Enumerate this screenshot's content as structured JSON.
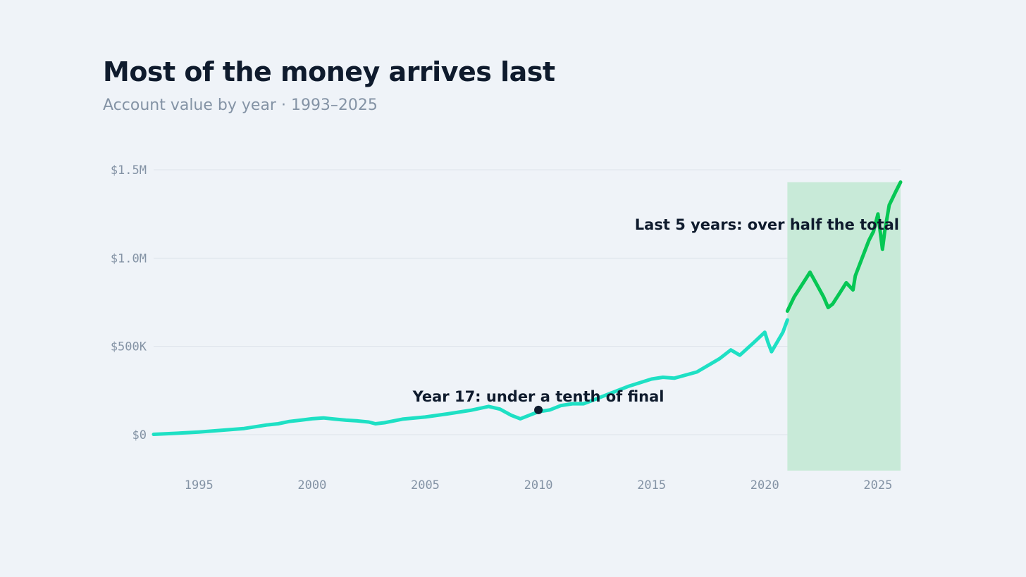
{
  "title": "Most of the money arrives last",
  "subtitle": "Account value by year · 1993–2025",
  "colors": {
    "background": "#eff3f8",
    "line_early": "#1ee0c4",
    "line_recent": "#06c754",
    "shade": "#c8ead8",
    "gridline": "#dde3ea",
    "text": "#0f1b2d",
    "muted": "#8493a5"
  },
  "chart_data": {
    "type": "line",
    "title": "Most of the money arrives last",
    "subtitle": "Account value by year · 1993–2025",
    "xlabel": "",
    "ylabel": "",
    "xlim": [
      1993,
      2026
    ],
    "ylim": [
      -200000,
      1500000
    ],
    "x_ticks": [
      1995,
      2000,
      2005,
      2010,
      2015,
      2020,
      2025
    ],
    "x_tick_labels": [
      "1995",
      "2000",
      "2005",
      "2010",
      "2015",
      "2020",
      "2025"
    ],
    "y_ticks": [
      0,
      500000,
      1000000,
      1500000
    ],
    "y_tick_labels": [
      "$0",
      "$500K",
      "$1.0M",
      "$1.5M"
    ],
    "grid": "horizontal",
    "legend": "none",
    "series": [
      {
        "x": [
          1993.0,
          1994.0,
          1995.0,
          1996.0,
          1997.0,
          1997.5,
          1998.0,
          1998.5,
          1999.0,
          1999.5,
          2000.0,
          2000.5,
          2001.0,
          2001.5,
          2002.0,
          2002.5,
          2002.8,
          2003.2,
          2004.0,
          2005.0,
          2006.0,
          2007.0,
          2007.8,
          2008.3,
          2008.8,
          2009.2,
          2010.0,
          2010.5,
          2011.0,
          2011.5,
          2012.0,
          2012.5,
          2013.0,
          2014.0,
          2015.0,
          2015.5,
          2016.0,
          2017.0,
          2018.0,
          2018.5,
          2018.9,
          2019.5,
          2020.0,
          2020.15,
          2020.3,
          2020.8,
          2021.0
        ],
        "y": [
          2000,
          8000,
          15000,
          25000,
          35000,
          45000,
          55000,
          62000,
          75000,
          82000,
          90000,
          95000,
          88000,
          82000,
          78000,
          72000,
          62000,
          68000,
          88000,
          100000,
          118000,
          138000,
          160000,
          145000,
          110000,
          90000,
          130000,
          140000,
          165000,
          175000,
          175000,
          200000,
          225000,
          275000,
          315000,
          325000,
          320000,
          355000,
          430000,
          480000,
          450000,
          520000,
          580000,
          520000,
          470000,
          580000,
          650000
        ]
      },
      {
        "x": [
          2021.0,
          2021.3,
          2021.6,
          2021.9,
          2022.0,
          2022.3,
          2022.6,
          2022.8,
          2023.0,
          2023.3,
          2023.6,
          2023.9,
          2024.0,
          2024.3,
          2024.6,
          2024.8,
          2025.0,
          2025.2,
          2025.3,
          2025.5,
          2025.8,
          2026.0
        ],
        "y": [
          700000,
          780000,
          840000,
          900000,
          920000,
          850000,
          780000,
          720000,
          740000,
          800000,
          860000,
          820000,
          900000,
          1000000,
          1100000,
          1150000,
          1250000,
          1050000,
          1150000,
          1300000,
          1380000,
          1430000
        ]
      }
    ],
    "shaded_region": {
      "x_start": 2021.0,
      "x_end": 2026.0,
      "label": "Last 5 years: over half the total"
    },
    "annotations": [
      {
        "text": "Year 17: under a tenth of final",
        "x": 2010.0,
        "y": 140000
      },
      {
        "text": "Last 5 years: over half the total",
        "x": 2026.0,
        "y": 1160000
      }
    ]
  }
}
